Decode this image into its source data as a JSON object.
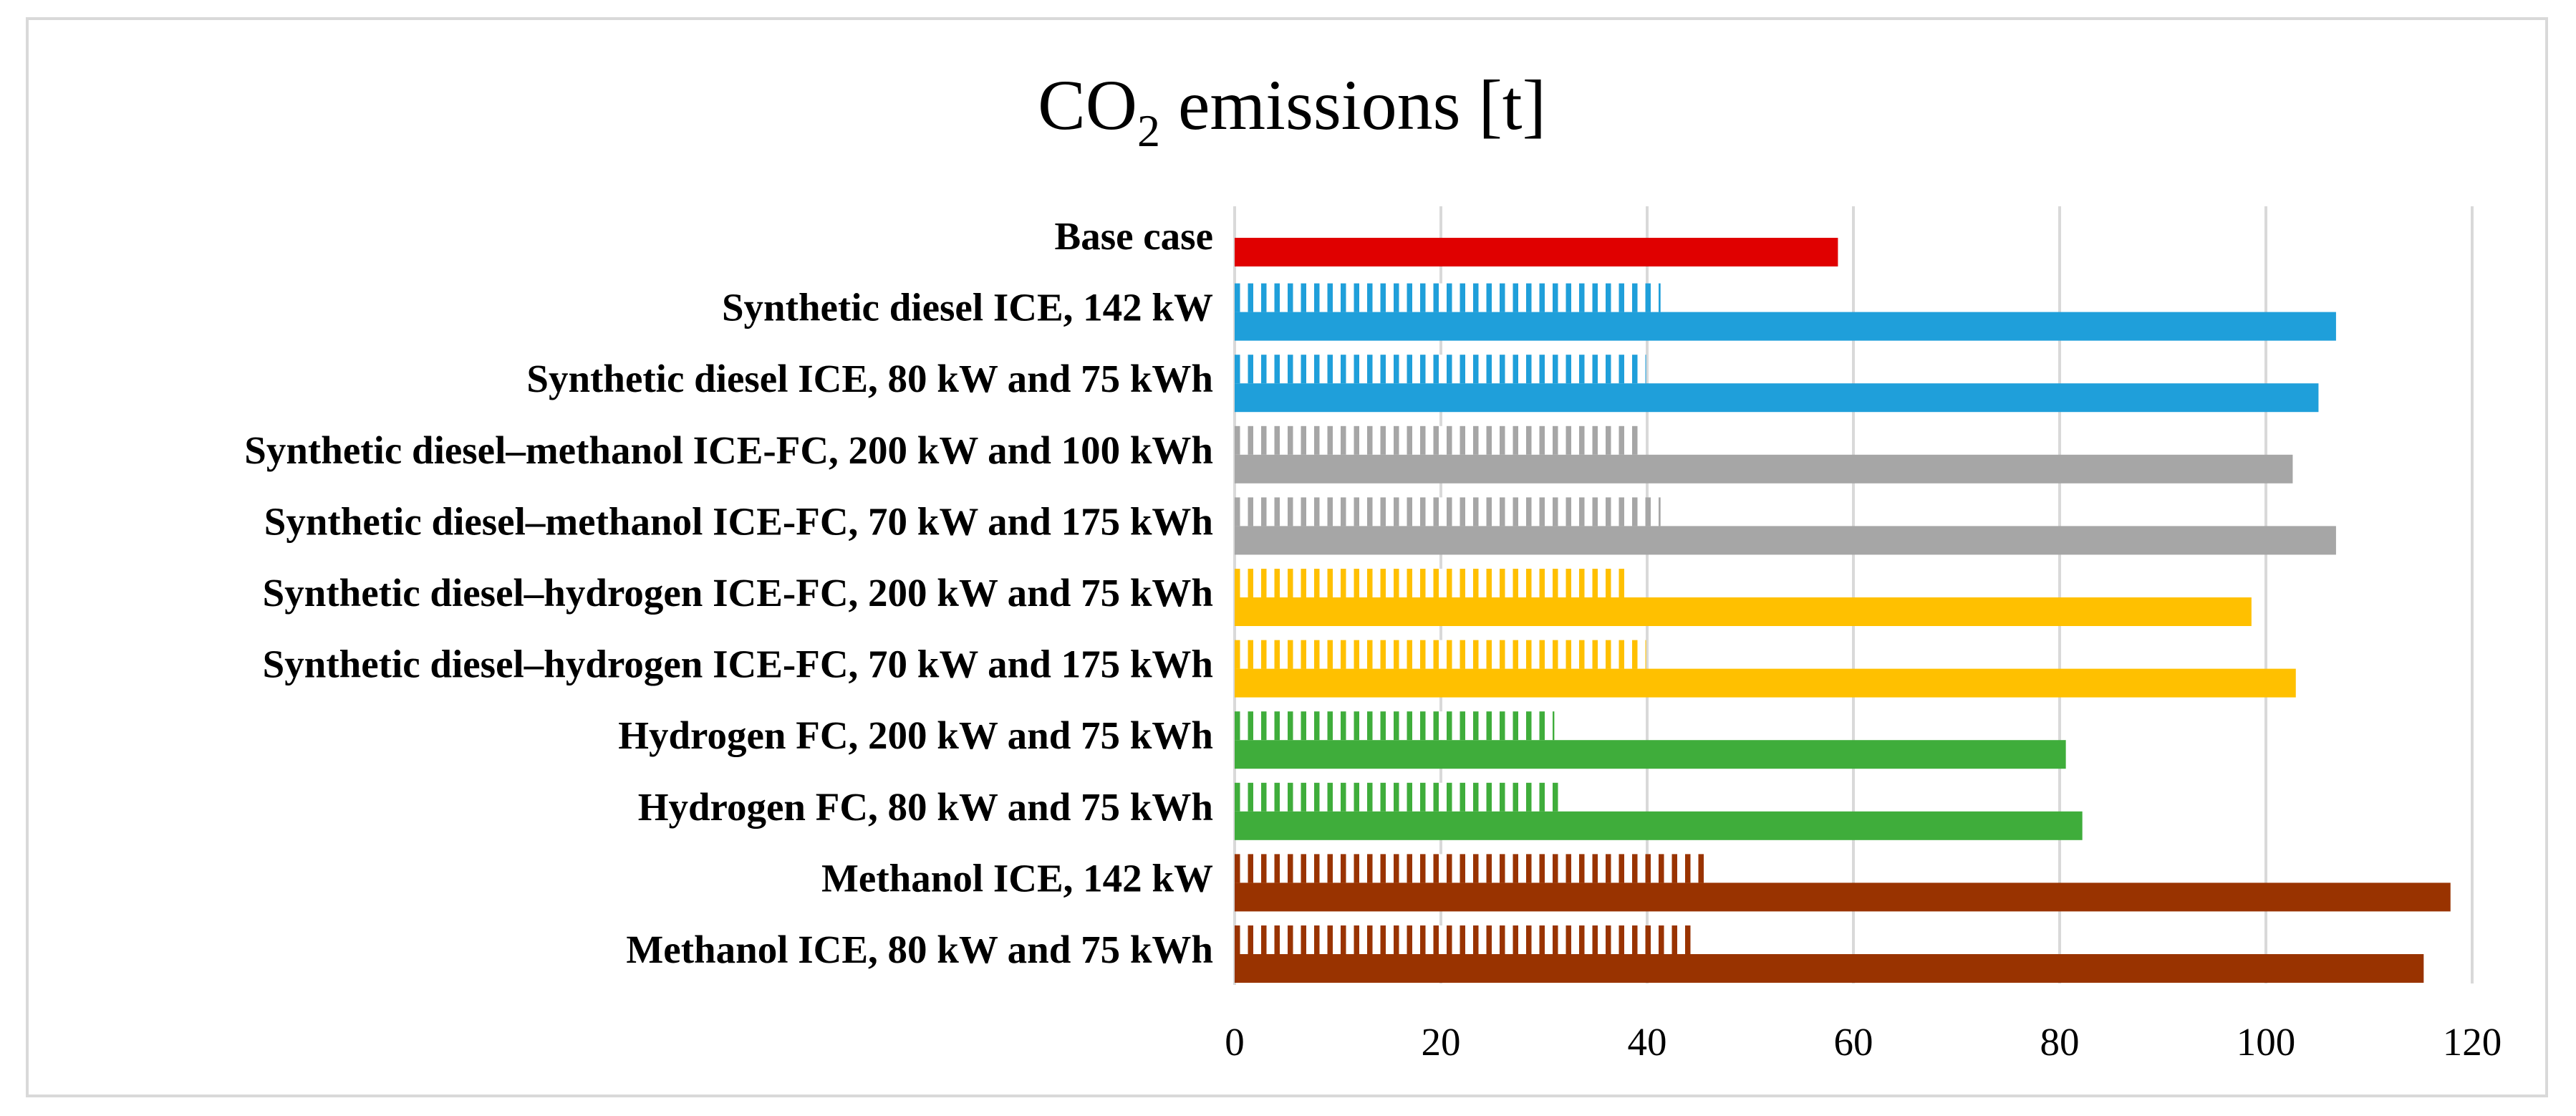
{
  "chart_data": {
    "type": "bar",
    "orientation": "horizontal",
    "title": {
      "prefix": "CO",
      "subscript": "2",
      "suffix": " emissions [t]"
    },
    "xlabel": "",
    "ylabel": "",
    "xlim": [
      0,
      120
    ],
    "ticks": [
      0,
      20,
      40,
      60,
      80,
      100,
      120
    ],
    "tick_labels": [
      "0",
      "20",
      "40",
      "60",
      "80",
      "100",
      "120"
    ],
    "grid": true,
    "legend": "none",
    "categories": [
      "Base case",
      "Synthetic diesel ICE, 142 kW",
      "Synthetic diesel ICE, 80 kW and 75 kWh",
      "Synthetic diesel–methanol ICE-FC, 200 kW and 100 kWh",
      "Synthetic diesel–methanol ICE-FC, 70 kW and 175 kWh",
      "Synthetic diesel–hydrogen ICE-FC, 200 kW and 75 kWh",
      "Synthetic diesel–hydrogen ICE-FC, 70 kW and 175 kWh",
      "Hydrogen FC, 200 kW and 75 kWh",
      "Hydrogen FC, 80 kW and 75 kWh",
      "Methanol ICE, 142 kW",
      "Methanol ICE, 80 kW and 75 kWh"
    ],
    "colors": [
      "#e00000",
      "#1f9fda",
      "#1f9fda",
      "#a6a6a6",
      "#a6a6a6",
      "#ffc000",
      "#ffc000",
      "#3fad3b",
      "#3fad3b",
      "#993300",
      "#993300"
    ],
    "series": [
      {
        "name": "Solid",
        "style": "solid",
        "values": [
          58.5,
          106.8,
          105.1,
          102.6,
          106.8,
          98.6,
          102.9,
          80.6,
          82.2,
          117.9,
          115.3
        ]
      },
      {
        "name": "Hatched",
        "style": "vertical-stripes",
        "values": [
          null,
          41.3,
          39.9,
          39.7,
          41.3,
          38.1,
          39.9,
          31.0,
          31.6,
          45.6,
          44.2
        ]
      }
    ]
  }
}
